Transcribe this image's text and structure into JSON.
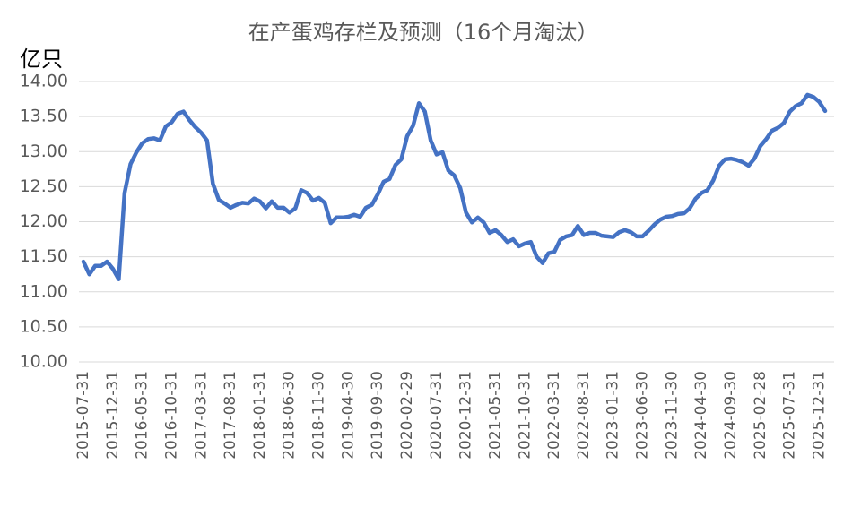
{
  "chart_data": {
    "type": "line",
    "title": "在产蛋鸡存栏及预测（16个月淘汰）",
    "y_label": "亿只",
    "categories": [
      "2015-07-31",
      null,
      null,
      null,
      null,
      "2015-12-31",
      null,
      null,
      null,
      null,
      "2016-05-31",
      null,
      null,
      null,
      null,
      "2016-10-31",
      null,
      null,
      null,
      null,
      "2017-03-31",
      null,
      null,
      null,
      null,
      "2017-08-31",
      null,
      null,
      null,
      null,
      "2018-01-31",
      null,
      null,
      null,
      null,
      "2018-06-30",
      null,
      null,
      null,
      null,
      "2018-11-30",
      null,
      null,
      null,
      null,
      "2019-04-30",
      null,
      null,
      null,
      null,
      "2019-09-30",
      null,
      null,
      null,
      null,
      "2020-02-29",
      null,
      null,
      null,
      null,
      "2020-07-31",
      null,
      null,
      null,
      null,
      "2020-12-31",
      null,
      null,
      null,
      null,
      "2021-05-31",
      null,
      null,
      null,
      null,
      "2021-10-31",
      null,
      null,
      null,
      null,
      "2022-03-31",
      null,
      null,
      null,
      null,
      "2022-08-31",
      null,
      null,
      null,
      null,
      "2023-01-31",
      null,
      null,
      null,
      null,
      "2023-06-30",
      null,
      null,
      null,
      null,
      "2023-11-30",
      null,
      null,
      null,
      null,
      "2024-04-30",
      null,
      null,
      null,
      null,
      "2024-09-30",
      null,
      null,
      null,
      null,
      "2025-02-28",
      null,
      null,
      null,
      null,
      "2025-07-31",
      null,
      null,
      null,
      null,
      "2025-12-31",
      null
    ],
    "series": [
      {
        "color": "#4472c4",
        "values": [
          11.43,
          11.25,
          11.37,
          11.37,
          11.43,
          11.33,
          11.18,
          12.41,
          12.82,
          12.99,
          13.12,
          13.18,
          13.19,
          13.16,
          13.36,
          13.42,
          13.54,
          13.57,
          13.45,
          13.35,
          13.27,
          13.16,
          12.54,
          12.31,
          12.26,
          12.2,
          12.24,
          12.27,
          12.26,
          12.33,
          12.29,
          12.19,
          12.29,
          12.2,
          12.2,
          12.13,
          12.19,
          12.45,
          12.41,
          12.3,
          12.34,
          12.27,
          11.98,
          12.06,
          12.06,
          12.07,
          12.1,
          12.07,
          12.2,
          12.24,
          12.39,
          12.57,
          12.61,
          12.81,
          12.89,
          13.22,
          13.37,
          13.69,
          13.57,
          13.16,
          12.96,
          12.99,
          12.73,
          12.66,
          12.48,
          12.13,
          11.99,
          12.06,
          11.99,
          11.84,
          11.88,
          11.81,
          11.71,
          11.75,
          11.65,
          11.69,
          11.71,
          11.5,
          11.41,
          11.55,
          11.57,
          11.74,
          11.79,
          11.81,
          11.94,
          11.81,
          11.84,
          11.84,
          11.8,
          11.79,
          11.78,
          11.85,
          11.88,
          11.85,
          11.79,
          11.79,
          11.87,
          11.96,
          12.03,
          12.07,
          12.08,
          12.11,
          12.12,
          12.19,
          12.33,
          12.41,
          12.45,
          12.59,
          12.8,
          12.89,
          12.9,
          12.88,
          12.85,
          12.8,
          12.9,
          13.08,
          13.18,
          13.3,
          13.34,
          13.41,
          13.57,
          13.65,
          13.69,
          13.81,
          13.78,
          13.71,
          13.58
        ]
      }
    ],
    "ylim": [
      10,
      14
    ],
    "yticks": [
      {
        "value": 10,
        "label": "10.00"
      },
      {
        "value": 10.5,
        "label": "10.50"
      },
      {
        "value": 11,
        "label": "11.00"
      },
      {
        "value": 11.5,
        "label": "11.50"
      },
      {
        "value": 12,
        "label": "12.00"
      },
      {
        "value": 12.5,
        "label": "12.50"
      },
      {
        "value": 13,
        "label": "13.00"
      },
      {
        "value": 13.5,
        "label": "13.50"
      },
      {
        "value": 14,
        "label": "14.00"
      }
    ],
    "grid": true
  }
}
